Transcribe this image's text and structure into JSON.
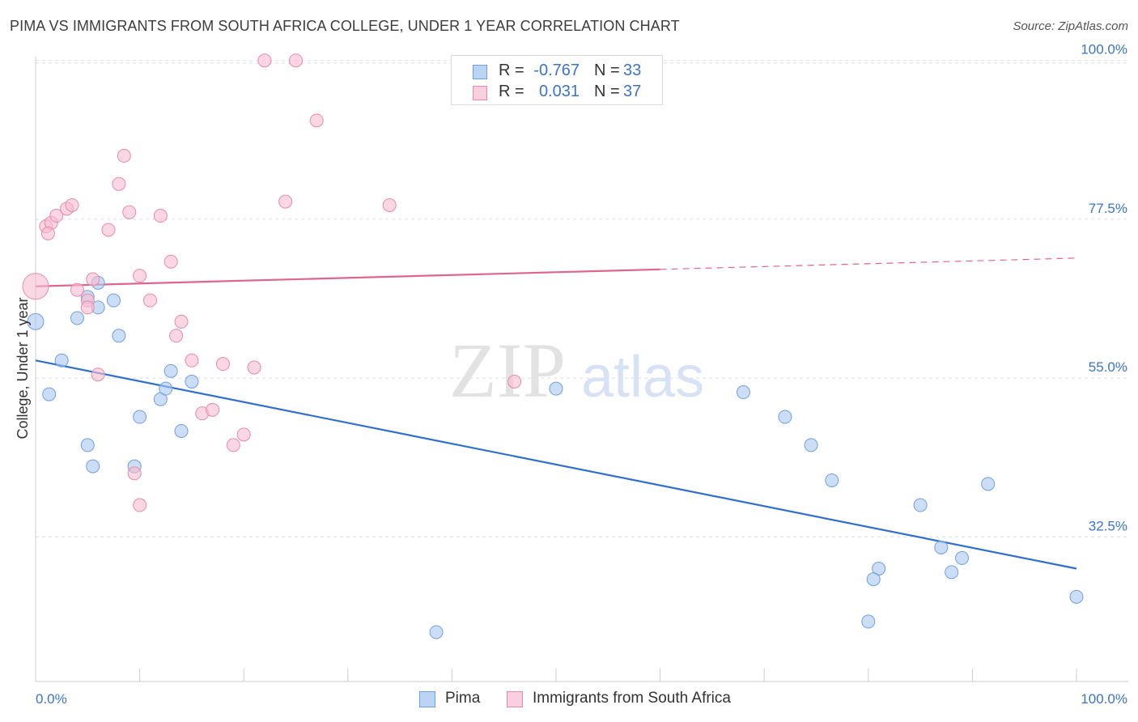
{
  "chart_data": {
    "type": "scatter",
    "title": "PIMA VS IMMIGRANTS FROM SOUTH AFRICA COLLEGE, UNDER 1 YEAR CORRELATION CHART",
    "source": "Source: ZipAtlas.com",
    "xlabel": "",
    "ylabel": "College, Under 1 year",
    "xlim": [
      0,
      100
    ],
    "ylim": [
      12,
      101
    ],
    "x_tick_labels": [
      "0.0%",
      "100.0%"
    ],
    "y_ticks": [
      32.5,
      55.0,
      77.5,
      100.0
    ],
    "y_tick_labels": [
      "32.5%",
      "55.0%",
      "77.5%",
      "100.0%"
    ],
    "grid": true,
    "legend_placement": "top-center",
    "watermark": "ZIPatlas",
    "series": [
      {
        "name": "Pima",
        "color": "#a9c8f0",
        "stroke": "#6f9fe0",
        "line_color": "#2f6fd0",
        "r_label": "R =",
        "r_value": "-0.767",
        "n_label": "N =",
        "n_value": "33",
        "trend": {
          "x0": 0,
          "y0": 57.5,
          "x1": 100,
          "y1": 28.0,
          "solid_until": 100
        },
        "points": [
          [
            0,
            63.0
          ],
          [
            2.5,
            57.5
          ],
          [
            1.3,
            52.7
          ],
          [
            4,
            63.5
          ],
          [
            5,
            66.5
          ],
          [
            6,
            65.0
          ],
          [
            7.5,
            66.0
          ],
          [
            5.5,
            42.5
          ],
          [
            5,
            45.5
          ],
          [
            8,
            61.0
          ],
          [
            10,
            49.5
          ],
          [
            6,
            68.5
          ],
          [
            9.5,
            42.5
          ],
          [
            12,
            52.0
          ],
          [
            13,
            56.0
          ],
          [
            15,
            54.5
          ],
          [
            14,
            47.5
          ],
          [
            12.5,
            53.5
          ],
          [
            50,
            53.5
          ],
          [
            68,
            53.0
          ],
          [
            72,
            49.5
          ],
          [
            74.5,
            45.5
          ],
          [
            76.5,
            40.5
          ],
          [
            81,
            28.0
          ],
          [
            80.5,
            26.5
          ],
          [
            85,
            37.0
          ],
          [
            87,
            31.0
          ],
          [
            88,
            27.5
          ],
          [
            89,
            29.5
          ],
          [
            91.5,
            40.0
          ],
          [
            38.5,
            19.0
          ],
          [
            80,
            20.5
          ],
          [
            100,
            24.0
          ]
        ]
      },
      {
        "name": "Immigrants from South Africa",
        "color": "#f7bdd0",
        "stroke": "#e88aa8",
        "line_color": "#e0658e",
        "r_label": "R =",
        "r_value": "0.031",
        "n_label": "N =",
        "n_value": "37",
        "trend": {
          "x0": 0,
          "y0": 68.0,
          "x1": 100,
          "y1": 72.0,
          "solid_until": 60
        },
        "points": [
          [
            0,
            68.0
          ],
          [
            1,
            76.5
          ],
          [
            1.5,
            77.0
          ],
          [
            2,
            78.0
          ],
          [
            3,
            79.0
          ],
          [
            1.2,
            75.5
          ],
          [
            3.5,
            79.5
          ],
          [
            4,
            67.5
          ],
          [
            5,
            66.0
          ],
          [
            5,
            65.0
          ],
          [
            6,
            55.5
          ],
          [
            7,
            76.0
          ],
          [
            8,
            82.5
          ],
          [
            8.5,
            86.5
          ],
          [
            9,
            78.5
          ],
          [
            10,
            69.5
          ],
          [
            11,
            66.0
          ],
          [
            12,
            78.0
          ],
          [
            13,
            71.5
          ],
          [
            13.5,
            61.0
          ],
          [
            14,
            63.0
          ],
          [
            15,
            57.5
          ],
          [
            16,
            50.0
          ],
          [
            17,
            50.5
          ],
          [
            18,
            57.0
          ],
          [
            19,
            45.5
          ],
          [
            20,
            47.0
          ],
          [
            21,
            56.5
          ],
          [
            22,
            100.0
          ],
          [
            24,
            80.0
          ],
          [
            25,
            100.0
          ],
          [
            27,
            91.5
          ],
          [
            34,
            79.5
          ],
          [
            46,
            54.5
          ],
          [
            9.5,
            41.5
          ],
          [
            10,
            37.0
          ],
          [
            5.5,
            69.0
          ]
        ]
      }
    ]
  }
}
